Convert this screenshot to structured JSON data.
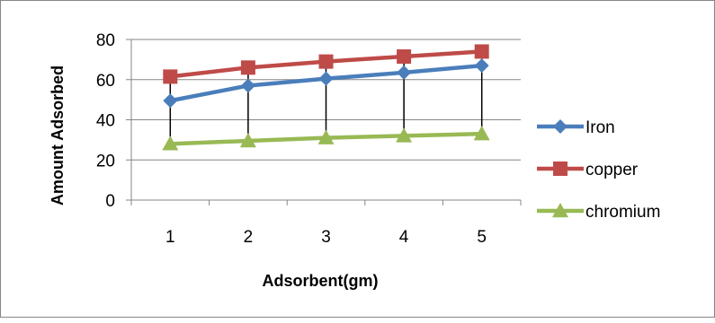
{
  "chart_data": {
    "type": "line",
    "xlabel": "Adsorbent(gm)",
    "ylabel": "Amount Adsorbed",
    "categories": [
      "1",
      "2",
      "3",
      "4",
      "5"
    ],
    "ylim": [
      0,
      80
    ],
    "yticks": [
      "0",
      "20",
      "40",
      "60",
      "80"
    ],
    "grid": "horizontal",
    "high_low_lines": true,
    "legend_position": "right",
    "series": [
      {
        "name": "Iron",
        "values": [
          49.5,
          57,
          60.5,
          63.5,
          67
        ],
        "color": "#4a7ebb",
        "marker": "diamond"
      },
      {
        "name": "copper",
        "values": [
          61.5,
          66,
          69,
          71.5,
          74
        ],
        "color": "#be4b48",
        "marker": "square"
      },
      {
        "name": "chromium",
        "values": [
          28,
          29.5,
          31,
          32,
          33
        ],
        "color": "#98b954",
        "marker": "triangle"
      }
    ]
  }
}
